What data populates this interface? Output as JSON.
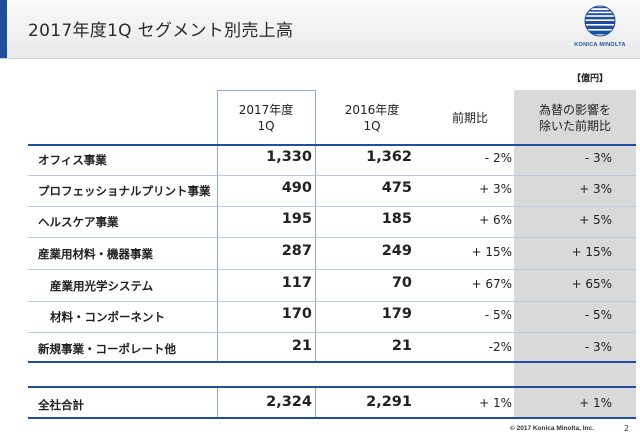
{
  "slide": {
    "title": "2017年度1Q セグメント別売上高",
    "unit": "【億円】",
    "logo_text": "KONICA MINOLTA",
    "footer": "© 2017 Konica Minolta, Inc.",
    "page_number": "2",
    "colors": {
      "accent": "#1f4e9e",
      "shaded_column": "#d9d9d9",
      "header_band": "#eeeeee"
    }
  },
  "table": {
    "headers": {
      "fy2017_line1": "2017年度",
      "fy2017_line2": "1Q",
      "fy2016_line1": "2016年度",
      "fy2016_line2": "1Q",
      "yoy": "前期比",
      "fx_line1": "為替の影響を",
      "fx_line2": "除いた前期比"
    },
    "rows": [
      {
        "segment": "オフィス事業",
        "fy2017": "1,330",
        "fy2016": "1,362",
        "yoy": "- 2%",
        "yoy_ex_fx": "- 3%"
      },
      {
        "segment": "プロフェッショナルプリント事業",
        "fy2017": "490",
        "fy2016": "475",
        "yoy": "+ 3%",
        "yoy_ex_fx": "+ 3%"
      },
      {
        "segment": "ヘルスケア事業",
        "fy2017": "195",
        "fy2016": "185",
        "yoy": "+ 6%",
        "yoy_ex_fx": "+ 5%"
      },
      {
        "segment": "産業用材料・機器事業",
        "fy2017": "287",
        "fy2016": "249",
        "yoy": "+ 15%",
        "yoy_ex_fx": "+ 15%"
      },
      {
        "segment": "産業用光学システム",
        "fy2017": "117",
        "fy2016": "70",
        "yoy": "+ 67%",
        "yoy_ex_fx": "+ 65%"
      },
      {
        "segment": "材料・コンポーネント",
        "fy2017": "170",
        "fy2016": "179",
        "yoy": "- 5%",
        "yoy_ex_fx": "- 5%"
      },
      {
        "segment": "新規事業・コーポレート他",
        "fy2017": "21",
        "fy2016": "21",
        "yoy": "-2%",
        "yoy_ex_fx": "- 3%"
      }
    ],
    "total": {
      "segment": "全社合計",
      "fy2017": "2,324",
      "fy2016": "2,291",
      "yoy": "+ 1%",
      "yoy_ex_fx": "+ 1%"
    }
  }
}
